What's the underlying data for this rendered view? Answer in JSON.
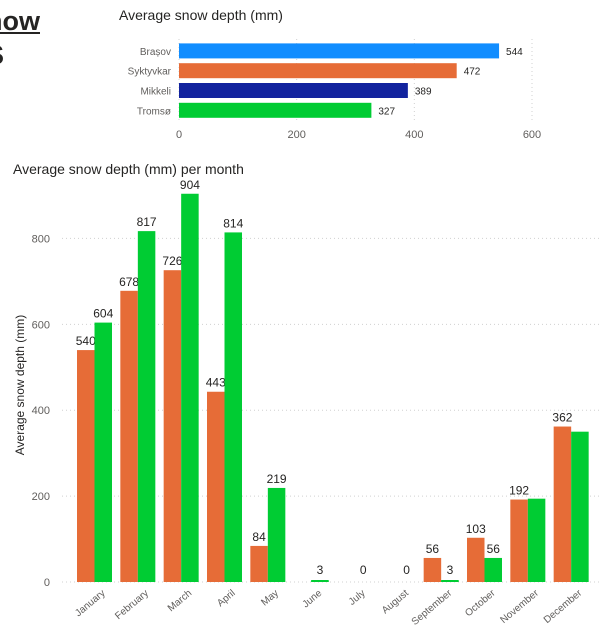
{
  "page": {
    "title_line1": "now",
    "title_line2": "S"
  },
  "chart_data": [
    {
      "type": "bar",
      "orientation": "horizontal",
      "title": "Average snow depth (mm)",
      "categories": [
        "Brașov",
        "Syktyvkar",
        "Mikkeli",
        "Tromsø"
      ],
      "values": [
        544,
        472,
        389,
        327
      ],
      "bar_colors": [
        "#118DFF",
        "#E66C37",
        "#12239E",
        "#00CC33"
      ],
      "xlim": [
        0,
        600
      ],
      "xticks": [
        0,
        200,
        400,
        600
      ],
      "grid": true,
      "legend": "none"
    },
    {
      "type": "bar",
      "title": "Average snow depth (mm) per month",
      "ylabel": "Average snow depth (mm)",
      "xlabel": "",
      "categories": [
        "January",
        "February",
        "March",
        "April",
        "May",
        "June",
        "July",
        "August",
        "September",
        "October",
        "November",
        "December"
      ],
      "series": [
        {
          "color": "#E66C37",
          "values": [
            540,
            678,
            726,
            443,
            84,
            null,
            null,
            null,
            56,
            103,
            192,
            362
          ],
          "labels": [
            "540",
            "678",
            "726",
            "443",
            "84",
            "",
            "",
            "",
            "56",
            "103",
            "192",
            "362"
          ]
        },
        {
          "color": "#00CC33",
          "values": [
            604,
            817,
            904,
            814,
            219,
            3,
            0,
            0,
            3,
            56,
            194,
            350
          ],
          "labels": [
            "604",
            "817",
            "904",
            "814",
            "219",
            "3",
            "0",
            "0",
            "3",
            "56",
            "",
            ""
          ]
        }
      ],
      "ylim": [
        0,
        950
      ],
      "yticks": [
        0,
        200,
        400,
        600,
        800
      ],
      "grid": true,
      "legend": "none"
    }
  ]
}
